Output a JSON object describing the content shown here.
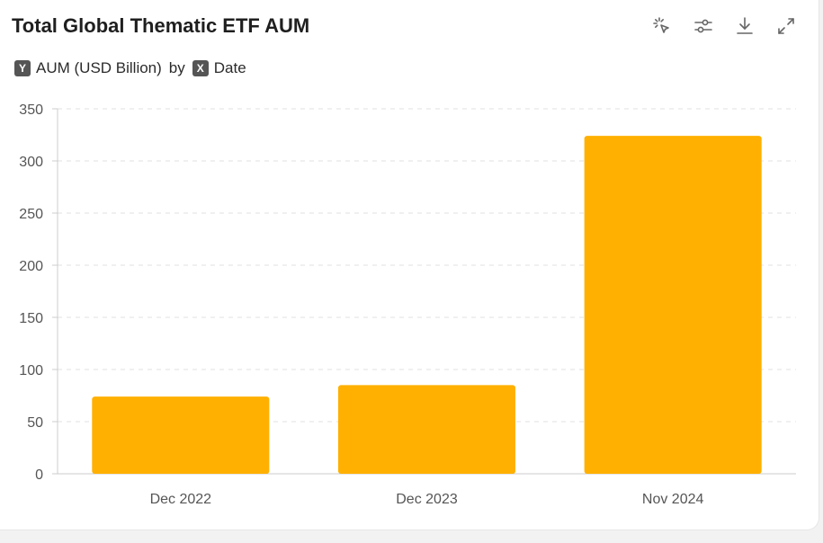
{
  "header": {
    "title": "Total Global Thematic ETF AUM"
  },
  "toolbar": {
    "icons": [
      "interact-icon",
      "filter-sliders-icon",
      "download-icon",
      "expand-icon"
    ]
  },
  "axis_legend": {
    "y_badge": "Y",
    "y_label": "AUM (USD Billion)",
    "by_word": "by",
    "x_badge": "X",
    "x_label": "Date"
  },
  "colors": {
    "bar": "#ffb000",
    "grid": "#e0e0e0",
    "axis": "#cccccc"
  },
  "chart_data": {
    "type": "bar",
    "categories": [
      "Dec 2022",
      "Dec 2023",
      "Nov 2024"
    ],
    "values": [
      74,
      85,
      324
    ],
    "ylabel": "AUM (USD Billion)",
    "xlabel": "Date",
    "ylim": [
      0,
      350
    ],
    "yticks": [
      "0",
      "50",
      "100",
      "150",
      "200",
      "250",
      "300",
      "350"
    ],
    "grid": true,
    "legend": "none"
  }
}
